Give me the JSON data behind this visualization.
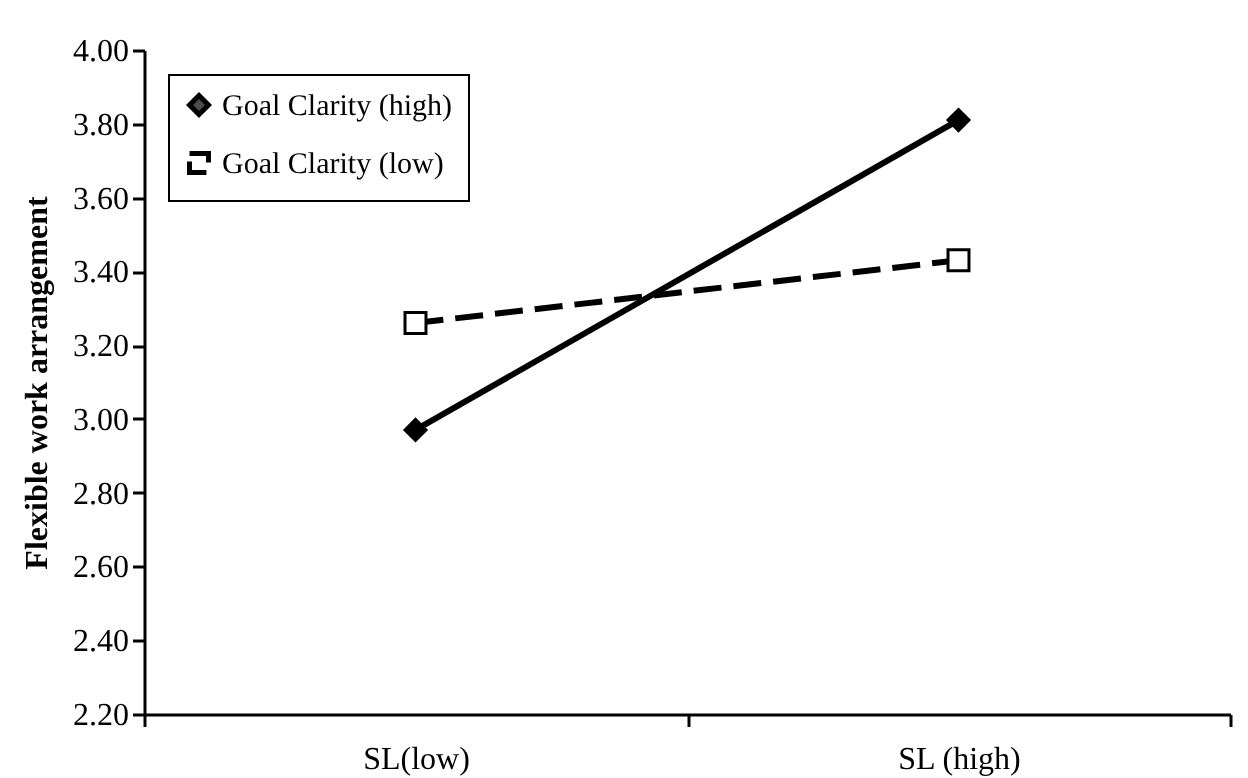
{
  "chart_data": {
    "type": "line",
    "ylabel": "Flexible work arrangement",
    "categories": [
      "SL(low)",
      "SL (high)"
    ],
    "series": [
      {
        "name": "Goal Clarity (high)",
        "color": "#000000",
        "values": [
          2.97,
          3.81
        ],
        "marker": "diamond",
        "line_style": "solid"
      },
      {
        "name": "Goal Clarity (low)",
        "color": "#000000",
        "values": [
          3.26,
          3.43
        ],
        "marker": "square",
        "line_style": "dashed"
      }
    ],
    "ylim": [
      2.2,
      4.0
    ],
    "yticks": [
      {
        "value": 2.2,
        "label": "2.20"
      },
      {
        "value": 2.4,
        "label": "2.40"
      },
      {
        "value": 2.6,
        "label": "2.60"
      },
      {
        "value": 2.8,
        "label": "2.80"
      },
      {
        "value": 3.0,
        "label": "3.00"
      },
      {
        "value": 3.2,
        "label": "3.20"
      },
      {
        "value": 3.4,
        "label": "3.40"
      },
      {
        "value": 3.6,
        "label": "3.60"
      },
      {
        "value": 3.8,
        "label": "3.80"
      },
      {
        "value": 4.0,
        "label": "4.00"
      }
    ],
    "grid": false,
    "legend": "top left"
  }
}
